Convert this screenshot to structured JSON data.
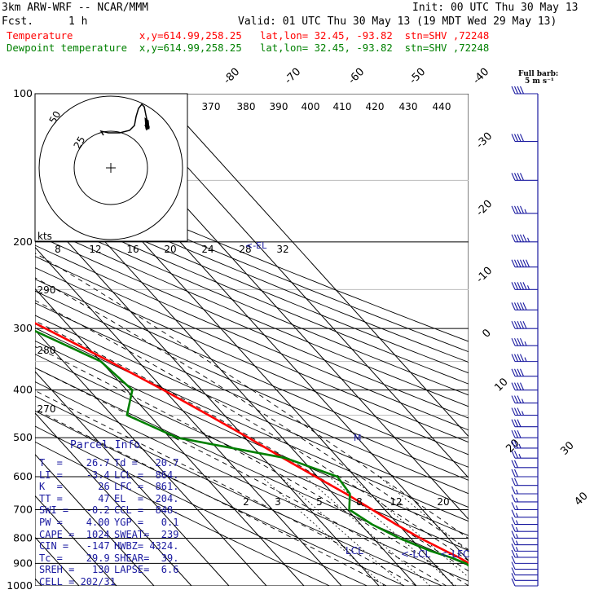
{
  "header": {
    "model": "3km ARW-WRF -- NCAR/MMM",
    "init": "Init: 00 UTC Thu 30 May 13",
    "fcst_label": "Fcst.",
    "fcst_value": "1 h",
    "valid": "Valid: 01 UTC Thu 30 May 13 (19 MDT Wed 29 May 13)",
    "line_temp": "Temperature           x,y=614.99,258.25   lat,lon= 32.45, -93.82  stn=SHV ,72248",
    "line_dew": "Dewpoint temperature  x,y=614.99,258.25   lat,lon= 32.45, -93.82  stn=SHV ,72248",
    "barb_legend_1": "Full barb:",
    "barb_legend_2": "5 m s⁻¹",
    "colors": {
      "temperature": "#ff0000",
      "dewpoint": "#008000",
      "parcel": "#1a1aa0",
      "barbs": "#1a1aa0"
    }
  },
  "chart_data": {
    "type": "line",
    "y_axis": {
      "scale": "log-pressure",
      "unit": "hPa",
      "range": [
        1000,
        100
      ],
      "ticks": [
        100,
        200,
        300,
        400,
        500,
        600,
        700,
        800,
        900,
        1000
      ]
    },
    "isotherm_labels": [
      "-80",
      "-70",
      "-60",
      "-50",
      "-40",
      "-30",
      "-20",
      "-10",
      "0",
      "10",
      "20",
      "30",
      "40"
    ],
    "theta_labels": [
      "370",
      "380",
      "390",
      "400",
      "410",
      "420",
      "430",
      "440"
    ],
    "theta_side_labels": [
      "290",
      "280",
      "270"
    ],
    "mixing_ratio_labels": [
      "2",
      "3",
      "5",
      "8",
      "12",
      "20"
    ],
    "hodograph": {
      "unit_label": "kts",
      "ring_labels": [
        "25",
        "50"
      ],
      "speed_ticks": [
        "8",
        "12",
        "16",
        "20",
        "24",
        "28",
        "32"
      ],
      "speed_tick_values": [
        8,
        12,
        16,
        20,
        24,
        28,
        32
      ]
    },
    "series": [
      {
        "name": "Temperature",
        "unit": "C",
        "pressure": [
          1000,
          975,
          950,
          925,
          900,
          875,
          850,
          800,
          750,
          700,
          650,
          600,
          550,
          500,
          450,
          400,
          350,
          300,
          250,
          200,
          175,
          150,
          125,
          100
        ],
        "values": [
          26.7,
          24.5,
          22.2,
          20.4,
          19.5,
          18.2,
          16.3,
          12.6,
          9.4,
          6.6,
          3.5,
          -0.5,
          -4.7,
          -9.0,
          -14.2,
          -20.2,
          -27.6,
          -36.8,
          -47.8,
          -58.6,
          -62.0,
          -61.0,
          -60.5,
          -61.5
        ]
      },
      {
        "name": "Dewpoint temperature",
        "unit": "C",
        "pressure": [
          1000,
          975,
          950,
          925,
          900,
          875,
          850,
          800,
          750,
          700,
          650,
          600,
          550,
          500,
          450,
          400,
          350,
          300,
          250,
          200,
          175,
          150,
          125,
          100
        ],
        "values": [
          20.7,
          20.0,
          19.5,
          19.0,
          18.7,
          16.0,
          12.3,
          7.0,
          3.0,
          0.5,
          4.5,
          5.3,
          -4.0,
          -28.0,
          -36.0,
          -28.5,
          -30.0,
          -41.0,
          -54.0,
          -66.0,
          -72.0,
          -76.0,
          -80.0,
          -84.0
        ]
      }
    ],
    "annotations": {
      "lcl": "LCL",
      "lcl2": "<-LCL",
      "lfc": "<-LFC",
      "marker": "M"
    }
  },
  "parcel_info": {
    "title": "Parcel Info",
    "rows": [
      [
        "T  =    26.7",
        "Td =   20.7"
      ],
      [
        "LI =    -3.4",
        "LCL =  864."
      ],
      [
        "K  =      26",
        "LFC =  861."
      ],
      [
        "TT =      47",
        "EL  =  204."
      ],
      [
        "SWI =   -0.2",
        "CCL =  848."
      ],
      [
        "PW =    4.00",
        "YGP =   0.1"
      ],
      [
        "CAPE =  1024",
        "SWEAT=  239"
      ],
      [
        "CIN =   -147",
        "HWBZ= 4324."
      ],
      [
        "Tc =    29.9",
        "SHEAR=  39."
      ],
      [
        "SREH =   130",
        "LAPSE=  6.6"
      ],
      [
        "CELL = 202/31",
        ""
      ]
    ]
  },
  "wind_barbs": {
    "pressure": [
      100,
      125,
      150,
      175,
      200,
      225,
      250,
      275,
      300,
      325,
      350,
      375,
      400,
      425,
      450,
      475,
      500,
      525,
      550,
      575,
      600,
      625,
      650,
      675,
      700,
      725,
      750,
      775,
      800,
      825,
      850,
      875,
      900,
      925,
      950,
      975,
      1000
    ],
    "speed_ms": [
      20,
      21,
      22,
      23,
      28,
      30,
      29,
      27,
      25,
      24,
      23,
      22,
      20,
      19,
      18,
      16,
      15,
      14,
      13,
      12,
      11,
      10,
      9,
      9,
      8,
      8,
      8,
      8,
      8,
      8,
      8,
      8,
      7,
      7,
      6,
      6,
      5
    ]
  }
}
